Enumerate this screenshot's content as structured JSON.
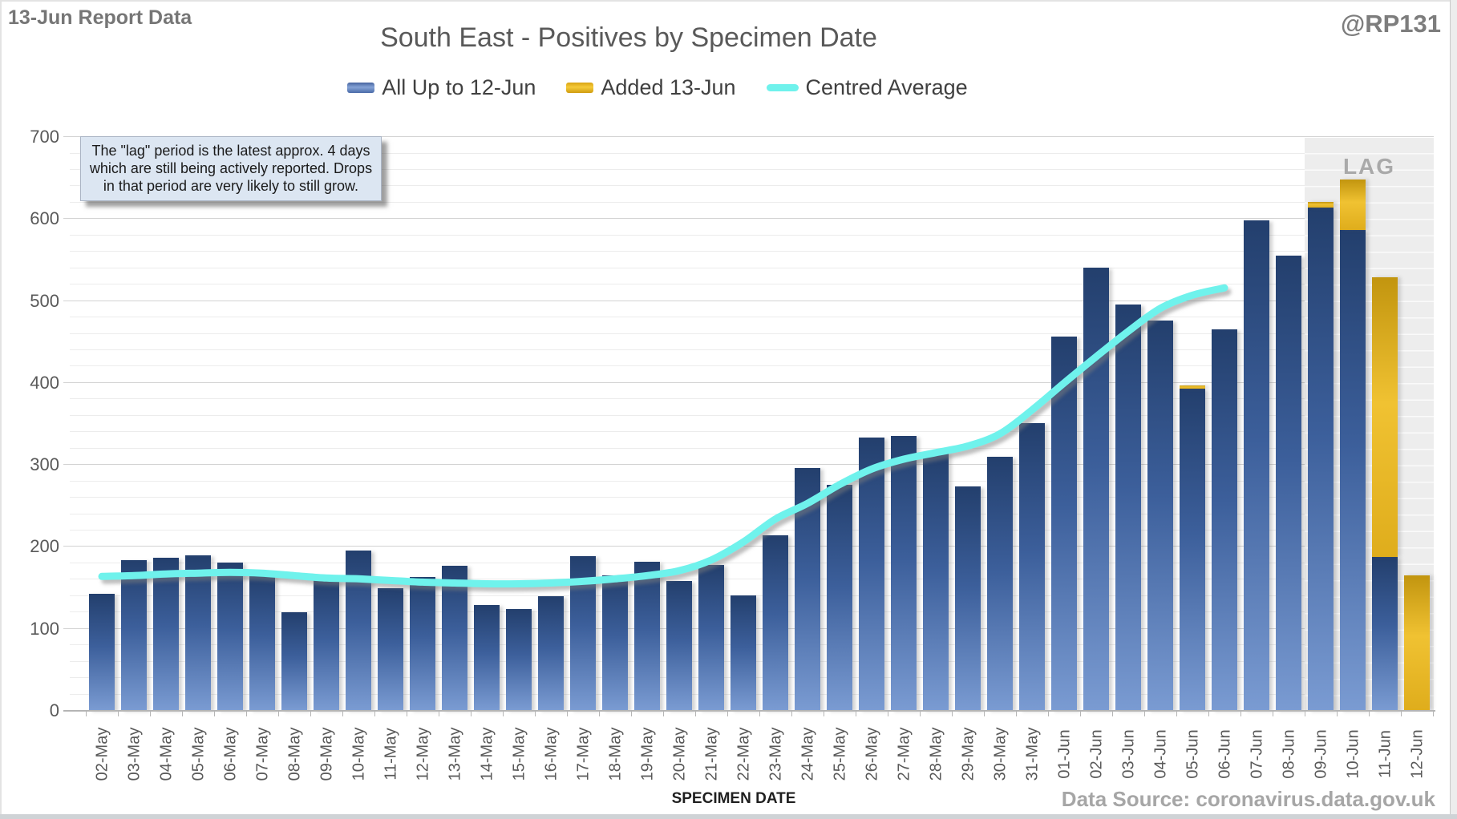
{
  "header": {
    "report_label": "13-Jun Report Data",
    "handle": "@RP131"
  },
  "chart_data": {
    "type": "bar",
    "title": "South East - Positives by Specimen Date",
    "xlabel": "SPECIMEN DATE",
    "ylabel": "",
    "ylim": [
      0,
      700
    ],
    "y_ticks": [
      0,
      100,
      200,
      300,
      400,
      500,
      600,
      700
    ],
    "minor_grid_step": 20,
    "grid": true,
    "legend_position": "top",
    "categories": [
      "02-May",
      "03-May",
      "04-May",
      "05-May",
      "06-May",
      "07-May",
      "08-May",
      "09-May",
      "10-May",
      "11-May",
      "12-May",
      "13-May",
      "14-May",
      "15-May",
      "16-May",
      "17-May",
      "18-May",
      "19-May",
      "20-May",
      "21-May",
      "22-May",
      "23-May",
      "24-May",
      "25-May",
      "26-May",
      "27-May",
      "28-May",
      "29-May",
      "30-May",
      "31-May",
      "01-Jun",
      "02-Jun",
      "03-Jun",
      "04-Jun",
      "05-Jun",
      "06-Jun",
      "07-Jun",
      "08-Jun",
      "09-Jun",
      "10-Jun",
      "11-Jun",
      "12-Jun"
    ],
    "series": [
      {
        "name": "All Up to 12-Jun",
        "type": "bar",
        "color_top": "#233f6d",
        "color_bottom": "#7a9bd2",
        "values": [
          142,
          183,
          186,
          189,
          180,
          165,
          119,
          158,
          195,
          149,
          162,
          176,
          128,
          123,
          139,
          188,
          164,
          181,
          157,
          177,
          140,
          213,
          295,
          275,
          332,
          334,
          314,
          273,
          309,
          350,
          456,
          540,
          495,
          475,
          392,
          464,
          597,
          554,
          613,
          586,
          187,
          0
        ]
      },
      {
        "name": "Added 13-Jun",
        "type": "bar-stacked-on-previous",
        "color": "#f0c232",
        "values": [
          0,
          0,
          0,
          0,
          0,
          0,
          0,
          0,
          0,
          0,
          0,
          0,
          0,
          0,
          0,
          0,
          0,
          0,
          0,
          0,
          0,
          0,
          0,
          0,
          0,
          0,
          0,
          0,
          0,
          0,
          0,
          0,
          0,
          0,
          4,
          0,
          0,
          0,
          7,
          61,
          341,
          164
        ]
      },
      {
        "name": "Centred Average",
        "type": "line",
        "color": "#6ff2ec",
        "values": [
          163,
          164,
          166,
          167,
          168,
          167,
          164,
          161,
          160,
          158,
          156,
          155,
          154,
          154,
          155,
          157,
          160,
          164,
          170,
          183,
          205,
          233,
          252,
          275,
          294,
          306,
          314,
          322,
          337,
          366,
          399,
          431,
          462,
          490,
          506,
          515,
          null,
          null,
          null,
          null,
          null,
          null
        ]
      }
    ],
    "lag": {
      "label": "LAG",
      "start_category": "09-Jun",
      "end_category": "12-Jun",
      "fill": "#ededed"
    },
    "annotation_lines": [
      "The \"lag\" period is the latest approx. 4 days",
      "which are still being actively reported.  Drops",
      "in that period are very likely to still grow."
    ]
  },
  "footer": {
    "source": "Data Source: coronavirus.data.gov.uk"
  },
  "colors": {
    "bar_blue_top": "#233f6d",
    "bar_blue_bottom": "#7a9bd2",
    "bar_gold": "#f0c232",
    "line_cyan": "#6ff2ec",
    "lag_fill": "#ededed",
    "grid_minor": "#ececec",
    "grid_major": "#d2d2d2",
    "text_gray": "#595959"
  }
}
